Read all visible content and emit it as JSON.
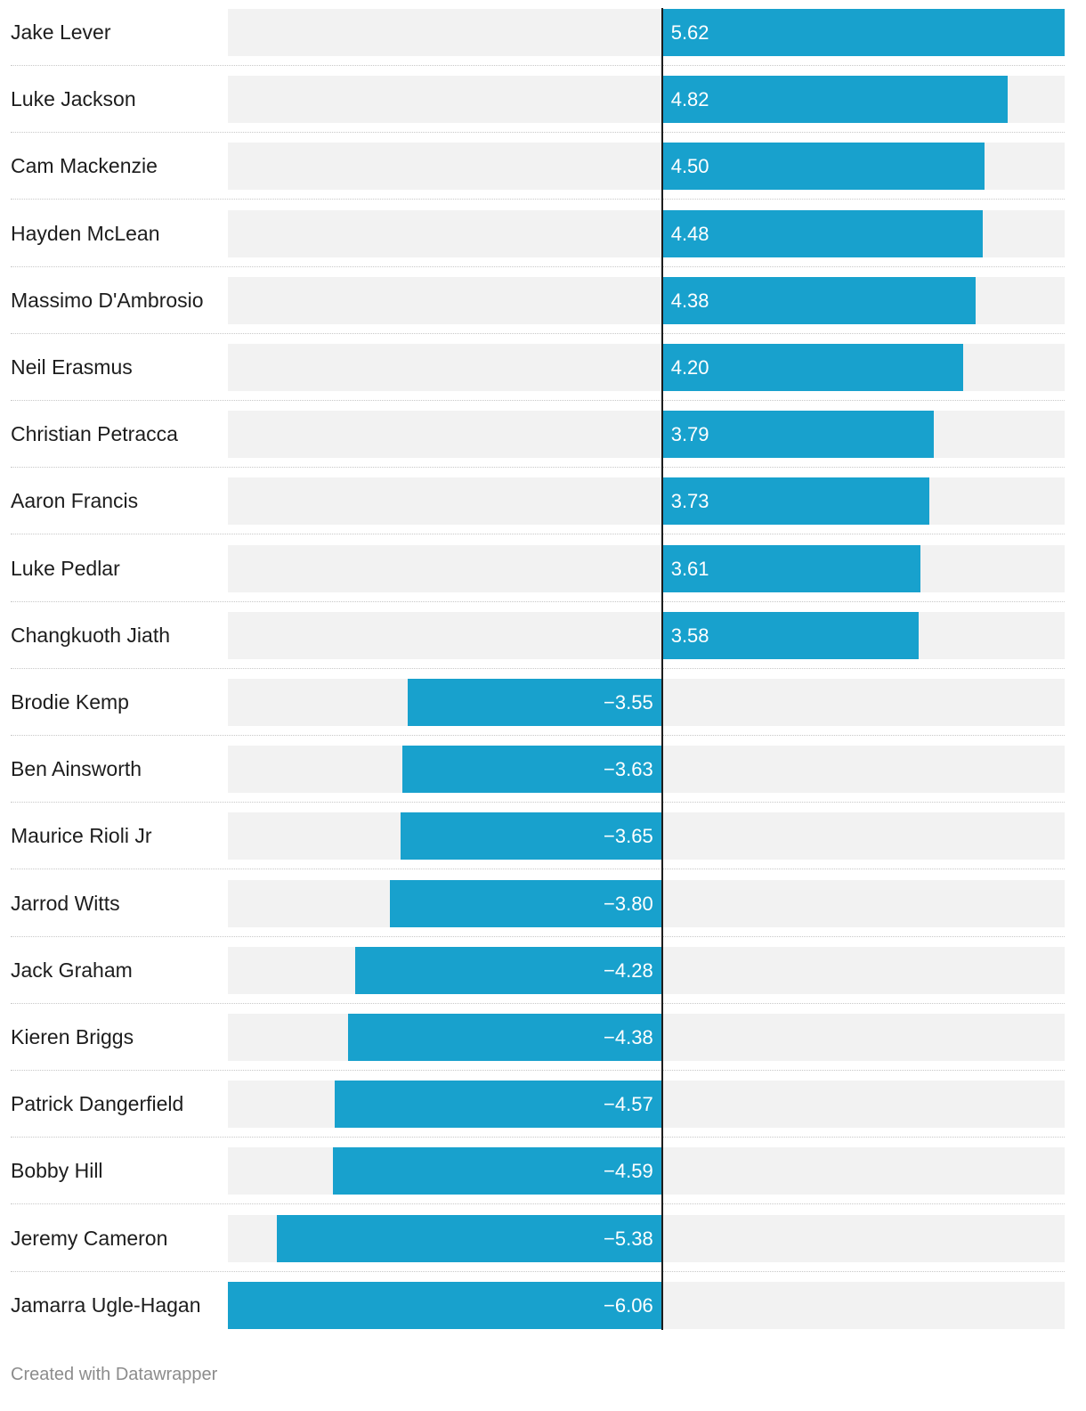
{
  "chart_data": {
    "type": "bar",
    "orientation": "horizontal",
    "categories": [
      "Jake Lever",
      "Luke Jackson",
      "Cam Mackenzie",
      "Hayden McLean",
      "Massimo D'Ambrosio",
      "Neil Erasmus",
      "Christian Petracca",
      "Aaron Francis",
      "Luke Pedlar",
      "Changkuoth Jiath",
      "Brodie Kemp",
      "Ben Ainsworth",
      "Maurice Rioli Jr",
      "Jarrod Witts",
      "Jack Graham",
      "Kieren Briggs",
      "Patrick Dangerfield",
      "Bobby Hill",
      "Jeremy Cameron",
      "Jamarra Ugle-Hagan"
    ],
    "values": [
      5.62,
      4.82,
      4.5,
      4.48,
      4.38,
      4.2,
      3.79,
      3.73,
      3.61,
      3.58,
      -3.55,
      -3.63,
      -3.65,
      -3.8,
      -4.28,
      -4.38,
      -4.57,
      -4.59,
      -5.38,
      -6.06
    ],
    "value_labels": [
      "5.62",
      "4.82",
      "4.50",
      "4.48",
      "4.38",
      "4.20",
      "3.79",
      "3.73",
      "3.61",
      "3.58",
      "−3.55",
      "−3.63",
      "−3.65",
      "−3.80",
      "−4.28",
      "−4.38",
      "−4.57",
      "−4.59",
      "−5.38",
      "−6.06"
    ],
    "xlim": [
      -6.06,
      5.62
    ],
    "bar_color": "#18a1cd",
    "track_color": "#f2f2f2",
    "title": "",
    "xlabel": "",
    "ylabel": ""
  },
  "footer": {
    "credit": "Created with Datawrapper"
  }
}
